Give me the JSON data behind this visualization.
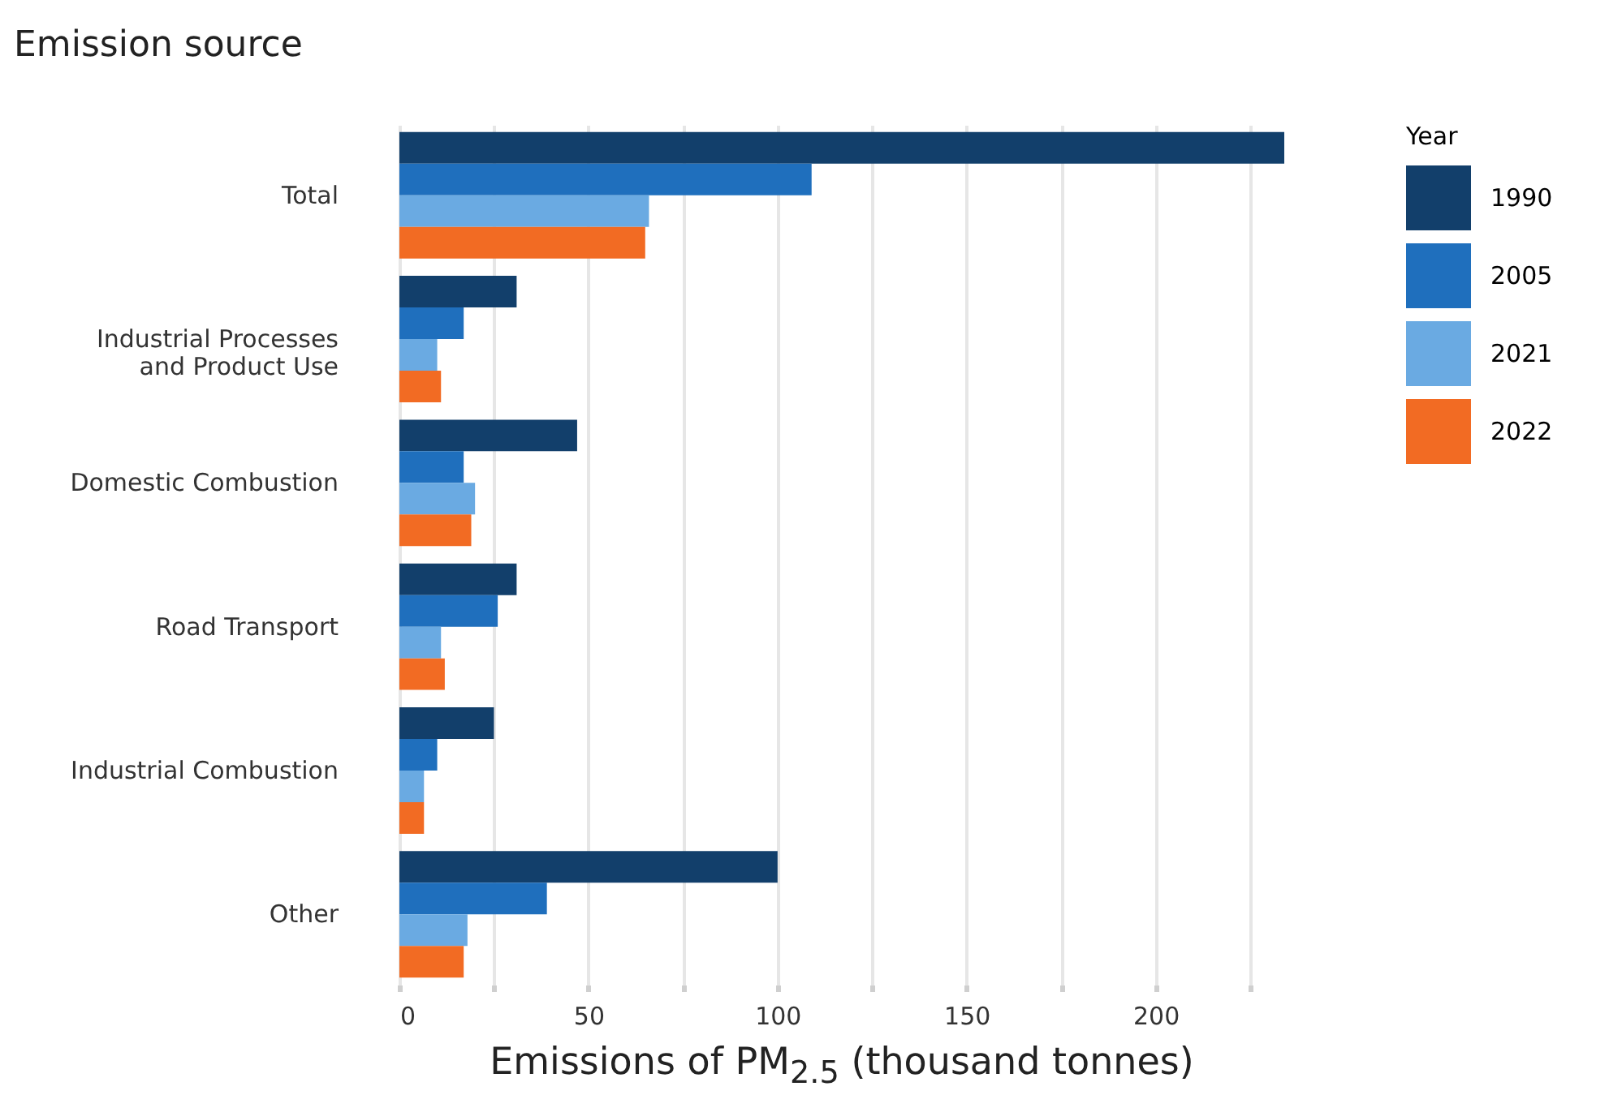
{
  "chart_data": {
    "type": "bar",
    "orientation": "horizontal",
    "ylabel": "Emission source",
    "xlabel": "Emissions of PM$_{2.5}$ (thousand tonnes)",
    "legend_title": "Year",
    "categories": [
      "Total",
      "Industrial Processes\nand Product Use",
      "Domestic Combustion",
      "Road Transport",
      "Industrial Combustion",
      "Other"
    ],
    "series": [
      {
        "name": "1990",
        "color": "#123f6b",
        "values": [
          234,
          31,
          47,
          31,
          25,
          100
        ]
      },
      {
        "name": "2005",
        "color": "#1f6fbd",
        "values": [
          109,
          17,
          17,
          26,
          10,
          39
        ]
      },
      {
        "name": "2021",
        "color": "#6aaae2",
        "values": [
          66,
          10,
          20,
          11,
          6.5,
          18
        ]
      },
      {
        "name": "2022",
        "color": "#f26b23",
        "values": [
          65,
          11,
          19,
          12,
          6.5,
          17
        ]
      }
    ],
    "xticks": [
      0,
      {
        "value": 25,
        "label": null
      },
      50,
      {
        "value": 75,
        "label": null
      },
      100,
      {
        "value": 125,
        "label": null
      },
      150,
      {
        "value": 175,
        "label": null
      },
      200,
      {
        "value": 225,
        "label": null
      }
    ],
    "xlim": [
      0,
      234
    ],
    "grid": "x",
    "legend": "right"
  }
}
